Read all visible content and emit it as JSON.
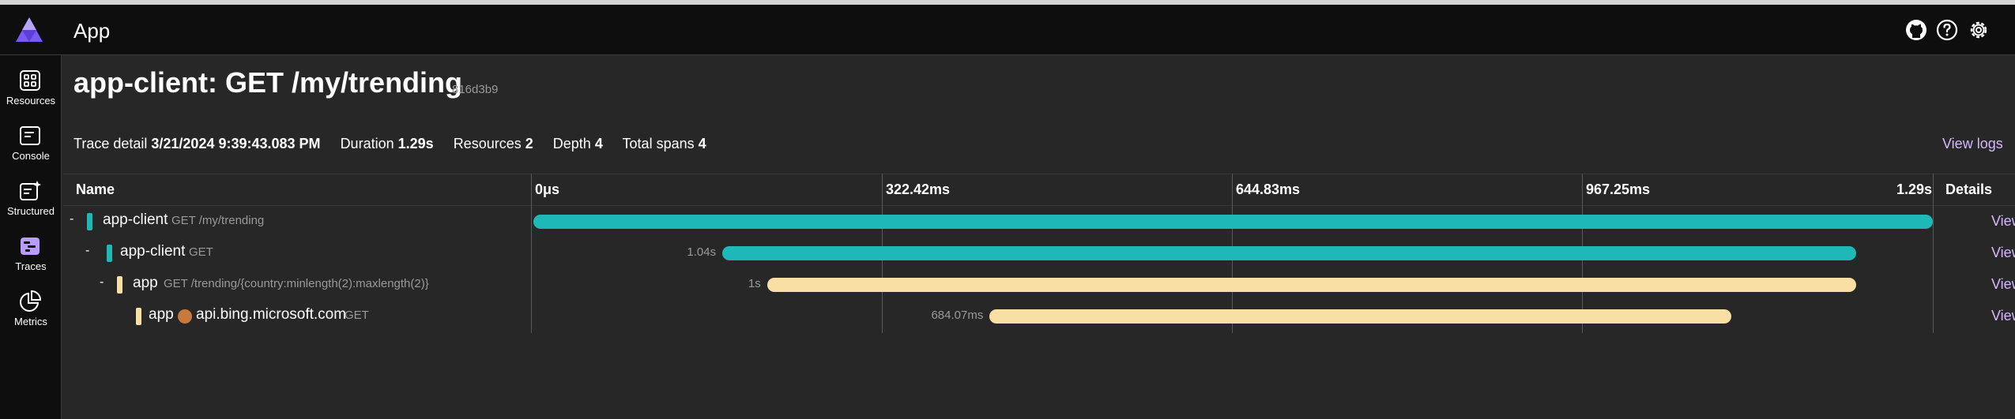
{
  "header": {
    "app_title": "App",
    "icons": [
      "github-icon",
      "help-icon",
      "settings-icon"
    ]
  },
  "sidebar": {
    "items": [
      {
        "label": "Resources",
        "icon": "resources-icon"
      },
      {
        "label": "Console",
        "icon": "console-icon"
      },
      {
        "label": "Structured",
        "icon": "structured-icon"
      },
      {
        "label": "Traces",
        "icon": "traces-icon",
        "active": true
      },
      {
        "label": "Metrics",
        "icon": "metrics-icon"
      }
    ]
  },
  "page": {
    "title": "app-client: GET /my/trending",
    "trace_id": "816d3b9"
  },
  "summary": {
    "trace_detail_label": "Trace detail",
    "trace_detail_value": "3/21/2024 9:39:43.083 PM",
    "duration_label": "Duration",
    "duration_value": "1.29s",
    "resources_label": "Resources",
    "resources_value": "2",
    "depth_label": "Depth",
    "depth_value": "4",
    "total_spans_label": "Total spans",
    "total_spans_value": "4",
    "view_logs": "View logs"
  },
  "table": {
    "name_header": "Name",
    "details_header": "Details",
    "ticks": [
      "0μs",
      "322.42ms",
      "644.83ms",
      "967.25ms",
      "1.29s"
    ],
    "rows": [
      {
        "collapse": "-",
        "service": "app-client",
        "operation": "GET /my/trending",
        "duration": "",
        "start_fraction": 0.0,
        "width_fraction": 1.0,
        "color": "#1fb8b8",
        "view": "View"
      },
      {
        "collapse": "-",
        "service": "app-client",
        "operation": "GET",
        "duration": "1.04s",
        "start_fraction": 0.135,
        "width_fraction": 0.81,
        "color": "#1fb8b8",
        "view": "View"
      },
      {
        "collapse": "-",
        "service": "app",
        "operation": "GET /trending/{country:minlength(2):maxlength(2)}",
        "duration": "1s",
        "start_fraction": 0.167,
        "width_fraction": 0.778,
        "color": "#f8dfa3",
        "view": "View"
      },
      {
        "collapse": "",
        "service": "app",
        "peer": "api.bing.microsoft.com",
        "operation": "GET",
        "duration": "684.07ms",
        "start_fraction": 0.326,
        "width_fraction": 0.53,
        "color": "#f8dfa3",
        "view": "View"
      }
    ]
  },
  "colors": {
    "client_span": "#1fb8b8",
    "app_span": "#f8dfa3",
    "link": "#d4b8ff",
    "accent": "#9b7bff"
  }
}
